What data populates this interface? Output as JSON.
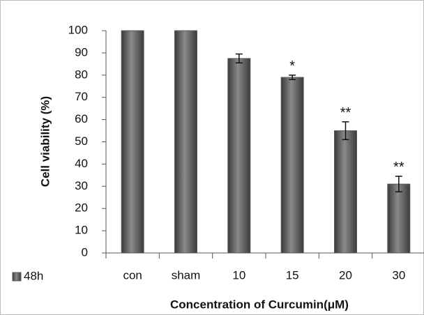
{
  "chart_data": {
    "type": "bar",
    "y_label": "Cell viability (%)",
    "x_label": "Concentration of Curcumin(μM)",
    "categories": [
      "con",
      "sham",
      "10",
      "15",
      "20",
      "30"
    ],
    "series": [
      {
        "name": "48h",
        "color": "#5a5a5a",
        "values": [
          100,
          100,
          87.5,
          79,
          55,
          31
        ],
        "errors": [
          0,
          0,
          2,
          1,
          4,
          3.5
        ],
        "significance": [
          null,
          null,
          null,
          "*",
          "**",
          "**"
        ]
      }
    ],
    "ylim": [
      0,
      100
    ],
    "yticks": [
      0,
      10,
      20,
      30,
      40,
      50,
      60,
      70,
      80,
      90,
      100
    ],
    "legend": "bottom-left"
  }
}
